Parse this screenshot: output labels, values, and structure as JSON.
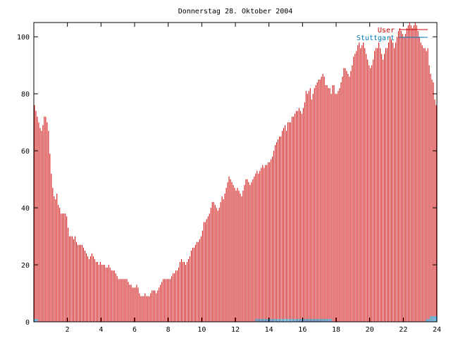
{
  "chart_data": {
    "type": "bar",
    "title": "Donnerstag 28. Oktober 2004",
    "xlim": [
      0,
      24
    ],
    "ylim": [
      0,
      105
    ],
    "x_ticks": [
      2,
      4,
      6,
      8,
      10,
      12,
      14,
      16,
      18,
      20,
      22,
      24
    ],
    "y_ticks": [
      0,
      20,
      40,
      60,
      80,
      100
    ],
    "legend_position": "top-right",
    "grid": false,
    "series": [
      {
        "name": "User",
        "color": "#cc0000",
        "values": [
          76,
          74,
          72,
          70,
          68,
          67,
          69,
          72,
          72,
          70,
          67,
          59,
          52,
          47,
          44,
          43,
          45,
          41,
          40,
          38,
          38,
          38,
          38,
          37,
          33,
          30,
          30,
          30,
          29,
          30,
          28,
          27,
          27,
          27,
          27,
          26,
          25,
          24,
          23,
          22,
          23,
          24,
          23,
          22,
          21,
          21,
          20,
          21,
          20,
          20,
          20,
          19,
          19,
          20,
          19,
          18,
          18,
          18,
          17,
          16,
          15,
          15,
          15,
          15,
          15,
          15,
          15,
          14,
          13,
          13,
          12,
          12,
          12,
          13,
          12,
          10,
          9,
          9,
          9,
          10,
          9,
          9,
          9,
          10,
          11,
          11,
          11,
          10,
          11,
          12,
          13,
          14,
          15,
          15,
          15,
          15,
          15,
          15,
          16,
          17,
          17,
          18,
          18,
          19,
          21,
          22,
          21,
          21,
          20,
          21,
          22,
          23,
          25,
          26,
          26,
          27,
          28,
          28,
          29,
          30,
          32,
          35,
          35,
          36,
          37,
          38,
          40,
          42,
          42,
          41,
          40,
          39,
          40,
          42,
          44,
          43,
          45,
          47,
          49,
          51,
          50,
          49,
          48,
          47,
          46,
          47,
          46,
          45,
          44,
          46,
          48,
          50,
          50,
          49,
          48,
          49,
          50,
          51,
          52,
          53,
          52,
          53,
          54,
          55,
          54,
          55,
          55,
          56,
          56,
          57,
          58,
          60,
          62,
          63,
          64,
          65,
          65,
          67,
          68,
          69,
          67,
          70,
          70,
          70,
          72,
          72,
          73,
          74,
          74,
          75,
          74,
          73,
          75,
          77,
          81,
          80,
          81,
          82,
          78,
          80,
          82,
          83,
          84,
          85,
          85,
          86,
          87,
          86,
          83,
          83,
          82,
          82,
          80,
          83,
          83,
          80,
          80,
          81,
          82,
          84,
          86,
          89,
          89,
          88,
          87,
          86,
          88,
          90,
          93,
          94,
          95,
          97,
          98,
          96,
          97,
          98,
          96,
          94,
          92,
          90,
          89,
          90,
          92,
          95,
          96,
          96,
          98,
          96,
          94,
          92,
          94,
          96,
          96,
          98,
          100,
          99,
          98,
          96,
          98,
          100,
          102,
          103,
          102,
          101,
          100,
          101,
          103,
          104,
          105,
          104,
          103,
          104,
          105,
          104,
          102,
          100,
          98,
          97,
          96,
          96,
          95,
          96,
          90,
          87,
          85,
          84,
          78,
          76
        ]
      },
      {
        "name": "Stuttgart",
        "color": "#0077bb",
        "values": [
          1,
          1,
          1,
          0,
          0,
          0,
          0,
          0,
          0,
          0,
          0,
          0,
          0,
          0,
          0,
          0,
          0,
          0,
          0,
          0,
          0,
          0,
          0,
          0,
          0,
          0,
          0,
          0,
          0,
          0,
          0,
          0,
          0,
          0,
          0,
          0,
          0,
          0,
          0,
          0,
          0,
          0,
          0,
          0,
          0,
          0,
          0,
          0,
          0,
          0,
          0,
          0,
          0,
          0,
          0,
          0,
          0,
          0,
          0,
          0,
          0,
          0,
          0,
          0,
          0,
          0,
          0,
          0,
          0,
          0,
          0,
          0,
          0,
          0,
          0,
          0,
          0,
          0,
          0,
          0,
          0,
          0,
          0,
          0,
          0,
          0,
          0,
          0,
          0,
          0,
          0,
          0,
          0,
          0,
          0,
          0,
          0,
          0,
          0,
          0,
          0,
          0,
          0,
          0,
          0,
          0,
          0,
          0,
          0,
          0,
          0,
          0,
          0,
          0,
          0,
          0,
          0,
          0,
          0,
          0,
          0,
          0,
          0,
          0,
          0,
          0,
          0,
          0,
          0,
          0,
          0,
          0,
          0,
          0,
          0,
          0,
          0,
          0,
          0,
          0,
          0,
          0,
          0,
          0,
          0,
          0,
          0,
          0,
          0,
          0,
          0,
          0,
          0,
          0,
          0,
          0,
          0,
          0,
          1,
          1,
          1,
          1,
          1,
          1,
          1,
          1,
          1,
          1,
          1,
          1,
          1,
          1,
          1,
          1,
          1,
          1,
          1,
          1,
          1,
          1,
          1,
          1,
          1,
          1,
          1,
          1,
          1,
          1,
          1,
          1,
          1,
          1,
          1,
          1,
          1,
          1,
          1,
          1,
          1,
          1,
          1,
          1,
          1,
          1,
          1,
          1,
          1,
          1,
          1,
          1,
          1,
          1,
          1,
          0,
          0,
          0,
          0,
          0,
          0,
          0,
          0,
          0,
          0,
          0,
          0,
          0,
          0,
          0,
          0,
          0,
          0,
          0,
          0,
          0,
          0,
          0,
          0,
          0,
          0,
          0,
          0,
          0,
          0,
          0,
          0,
          0,
          0,
          0,
          0,
          0,
          0,
          0,
          0,
          0,
          0,
          0,
          0,
          0,
          0,
          0,
          0,
          0,
          0,
          0,
          0,
          0,
          0,
          0,
          0,
          0,
          0,
          0,
          0,
          0,
          0,
          0,
          0,
          0,
          0,
          0,
          1,
          1,
          1,
          2,
          2,
          2,
          2,
          2
        ]
      }
    ]
  }
}
